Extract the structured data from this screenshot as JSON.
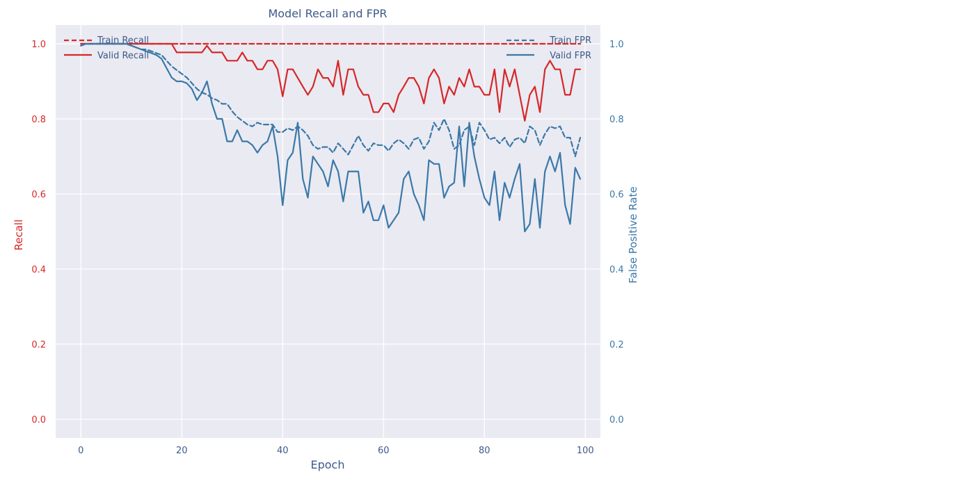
{
  "chart_data": {
    "type": "line",
    "title": "Model Recall and FPR",
    "xlabel": "Epoch",
    "ylabel_left": "Recall",
    "ylabel_right": "False Positive Rate",
    "xlim": [
      -5,
      103
    ],
    "ylim_left": [
      -0.05,
      1.05
    ],
    "ylim_right": [
      -0.05,
      1.05
    ],
    "xticks": [
      0,
      20,
      40,
      60,
      80,
      100
    ],
    "yticks_left": [
      0.0,
      0.2,
      0.4,
      0.6,
      0.8,
      1.0
    ],
    "yticks_right": [
      0.0,
      0.2,
      0.4,
      0.6,
      0.8,
      1.0
    ],
    "grid": true,
    "legend_left_position": "upper-left",
    "legend_right_position": "upper-right",
    "colors": {
      "recall": "#d62728",
      "fpr": "#3a78a8",
      "background": "#eaeaf2",
      "grid": "#ffffff",
      "title": "#3c5a8a"
    },
    "x": [
      0,
      1,
      2,
      3,
      4,
      5,
      6,
      7,
      8,
      9,
      10,
      11,
      12,
      13,
      14,
      15,
      16,
      17,
      18,
      19,
      20,
      21,
      22,
      23,
      24,
      25,
      26,
      27,
      28,
      29,
      30,
      31,
      32,
      33,
      34,
      35,
      36,
      37,
      38,
      39,
      40,
      41,
      42,
      43,
      44,
      45,
      46,
      47,
      48,
      49,
      50,
      51,
      52,
      53,
      54,
      55,
      56,
      57,
      58,
      59,
      60,
      61,
      62,
      63,
      64,
      65,
      66,
      67,
      68,
      69,
      70,
      71,
      72,
      73,
      74,
      75,
      76,
      77,
      78,
      79,
      80,
      81,
      82,
      83,
      84,
      85,
      86,
      87,
      88,
      89,
      90,
      91,
      92,
      93,
      94,
      95,
      96,
      97,
      98,
      99
    ],
    "series": [
      {
        "name": "Train Recall",
        "axis": "left",
        "style": "dashed",
        "color": "#d62728",
        "values": [
          1.0,
          1.0,
          1.0,
          1.0,
          1.0,
          1.0,
          1.0,
          1.0,
          1.0,
          1.0,
          1.0,
          1.0,
          1.0,
          1.0,
          1.0,
          1.0,
          1.0,
          1.0,
          1.0,
          1.0,
          1.0,
          1.0,
          1.0,
          1.0,
          1.0,
          1.0,
          1.0,
          1.0,
          1.0,
          1.0,
          1.0,
          1.0,
          1.0,
          1.0,
          1.0,
          1.0,
          1.0,
          1.0,
          1.0,
          1.0,
          1.0,
          1.0,
          1.0,
          1.0,
          1.0,
          1.0,
          1.0,
          1.0,
          1.0,
          1.0,
          1.0,
          1.0,
          1.0,
          1.0,
          1.0,
          1.0,
          1.0,
          1.0,
          1.0,
          1.0,
          1.0,
          1.0,
          1.0,
          1.0,
          1.0,
          1.0,
          1.0,
          1.0,
          1.0,
          1.0,
          1.0,
          1.0,
          1.0,
          1.0,
          1.0,
          1.0,
          1.0,
          1.0,
          1.0,
          1.0,
          1.0,
          1.0,
          1.0,
          1.0,
          1.0,
          1.0,
          1.0,
          1.0,
          1.0,
          1.0,
          1.0,
          1.0,
          1.0,
          1.0,
          1.0,
          1.0,
          1.0,
          1.0,
          1.0,
          1.0
        ]
      },
      {
        "name": "Valid Recall",
        "axis": "left",
        "style": "solid",
        "color": "#d62728",
        "values": [
          1.0,
          1.0,
          1.0,
          1.0,
          1.0,
          1.0,
          1.0,
          1.0,
          1.0,
          1.0,
          1.0,
          1.0,
          1.0,
          1.0,
          1.0,
          1.0,
          1.0,
          1.0,
          1.0,
          0.977,
          0.977,
          0.977,
          0.977,
          0.977,
          0.977,
          0.995,
          0.977,
          0.977,
          0.977,
          0.955,
          0.955,
          0.955,
          0.977,
          0.955,
          0.955,
          0.932,
          0.932,
          0.955,
          0.955,
          0.932,
          0.86,
          0.932,
          0.932,
          0.909,
          0.886,
          0.864,
          0.886,
          0.932,
          0.909,
          0.909,
          0.886,
          0.955,
          0.864,
          0.932,
          0.932,
          0.886,
          0.864,
          0.864,
          0.818,
          0.818,
          0.841,
          0.841,
          0.818,
          0.864,
          0.886,
          0.909,
          0.909,
          0.886,
          0.841,
          0.909,
          0.932,
          0.909,
          0.841,
          0.886,
          0.864,
          0.909,
          0.886,
          0.932,
          0.886,
          0.886,
          0.864,
          0.864,
          0.932,
          0.818,
          0.932,
          0.886,
          0.932,
          0.864,
          0.795,
          0.864,
          0.886,
          0.818,
          0.932,
          0.955,
          0.932,
          0.932,
          0.864,
          0.864,
          0.932,
          0.932
        ]
      },
      {
        "name": "Train FPR",
        "axis": "right",
        "style": "dashed",
        "color": "#3a78a8",
        "values": [
          0.995,
          1.0,
          1.0,
          1.0,
          1.0,
          1.0,
          1.0,
          1.0,
          1.0,
          1.0,
          0.995,
          0.99,
          0.985,
          0.985,
          0.98,
          0.975,
          0.97,
          0.955,
          0.94,
          0.93,
          0.92,
          0.91,
          0.895,
          0.88,
          0.87,
          0.865,
          0.855,
          0.85,
          0.84,
          0.84,
          0.82,
          0.805,
          0.795,
          0.785,
          0.78,
          0.79,
          0.785,
          0.785,
          0.785,
          0.765,
          0.765,
          0.775,
          0.77,
          0.78,
          0.77,
          0.755,
          0.73,
          0.72,
          0.725,
          0.725,
          0.71,
          0.735,
          0.72,
          0.705,
          0.73,
          0.755,
          0.73,
          0.715,
          0.735,
          0.73,
          0.73,
          0.715,
          0.735,
          0.745,
          0.735,
          0.72,
          0.745,
          0.75,
          0.72,
          0.74,
          0.79,
          0.77,
          0.8,
          0.77,
          0.72,
          0.73,
          0.77,
          0.78,
          0.73,
          0.79,
          0.77,
          0.745,
          0.75,
          0.735,
          0.75,
          0.725,
          0.745,
          0.75,
          0.735,
          0.78,
          0.77,
          0.73,
          0.76,
          0.78,
          0.775,
          0.78,
          0.75,
          0.75,
          0.7,
          0.75
        ]
      },
      {
        "name": "Valid FPR",
        "axis": "right",
        "style": "solid",
        "color": "#3a78a8",
        "values": [
          0.995,
          1.0,
          1.0,
          1.0,
          1.0,
          1.0,
          1.0,
          1.0,
          1.0,
          1.0,
          0.995,
          0.99,
          0.985,
          0.98,
          0.975,
          0.97,
          0.96,
          0.935,
          0.91,
          0.9,
          0.9,
          0.895,
          0.88,
          0.85,
          0.87,
          0.9,
          0.84,
          0.8,
          0.8,
          0.74,
          0.74,
          0.77,
          0.74,
          0.74,
          0.73,
          0.71,
          0.73,
          0.74,
          0.78,
          0.7,
          0.57,
          0.69,
          0.71,
          0.79,
          0.64,
          0.59,
          0.7,
          0.68,
          0.66,
          0.62,
          0.69,
          0.66,
          0.58,
          0.66,
          0.66,
          0.66,
          0.55,
          0.58,
          0.53,
          0.53,
          0.57,
          0.51,
          0.53,
          0.55,
          0.64,
          0.66,
          0.6,
          0.57,
          0.53,
          0.69,
          0.68,
          0.68,
          0.59,
          0.62,
          0.63,
          0.78,
          0.62,
          0.79,
          0.7,
          0.64,
          0.59,
          0.57,
          0.66,
          0.53,
          0.63,
          0.59,
          0.64,
          0.68,
          0.5,
          0.52,
          0.64,
          0.51,
          0.66,
          0.7,
          0.66,
          0.71,
          0.57,
          0.52,
          0.67,
          0.64
        ]
      }
    ]
  }
}
